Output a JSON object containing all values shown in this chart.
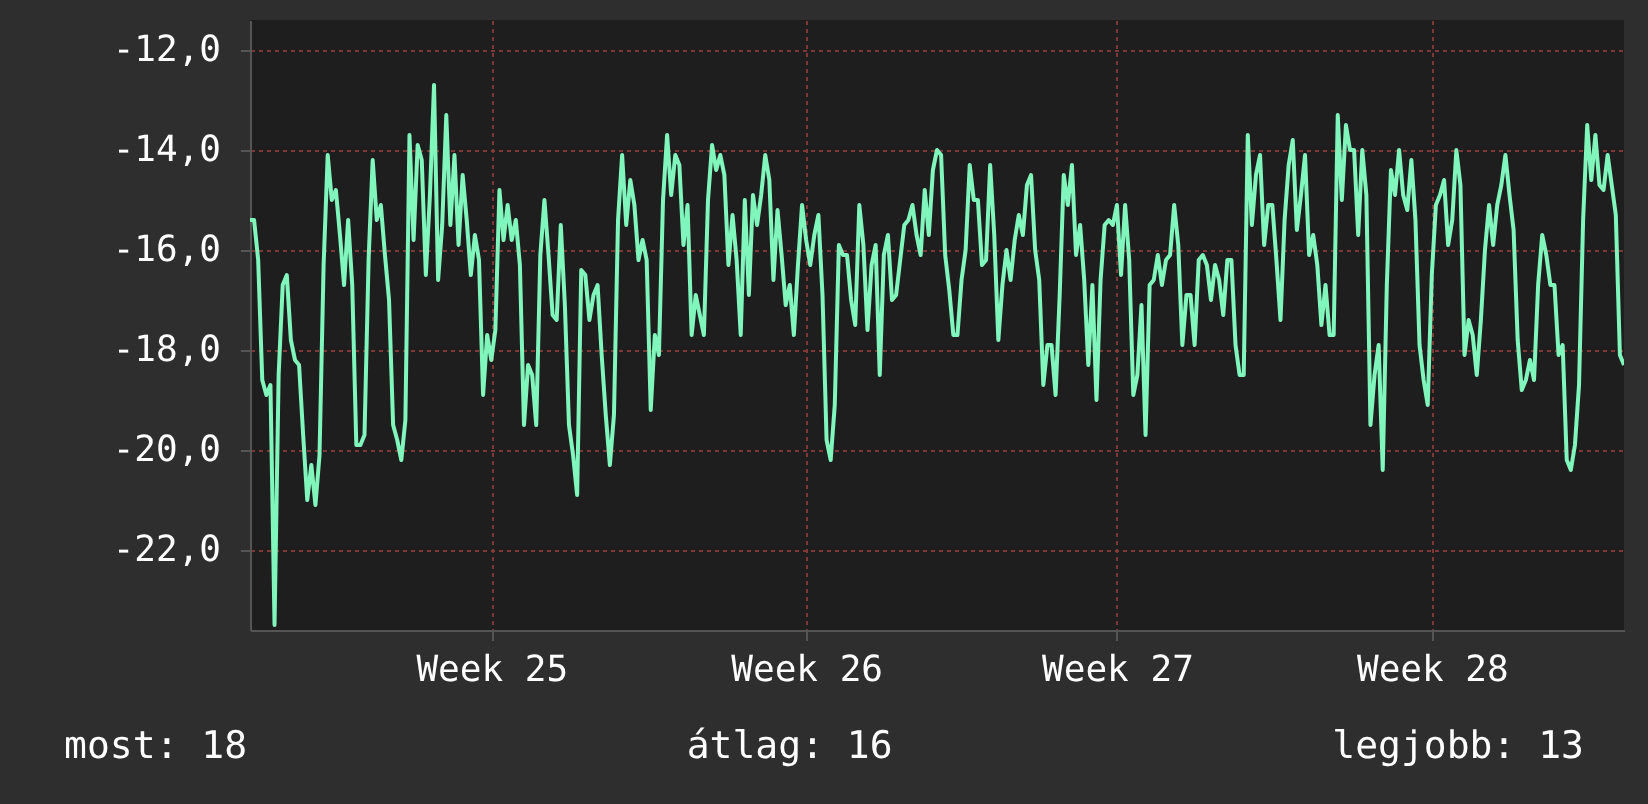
{
  "chart_data": {
    "type": "line",
    "color": "#80f5bc",
    "grid": true,
    "line_style": "solid",
    "categories": [
      null,
      null,
      null,
      null,
      null,
      null,
      null,
      null,
      null,
      null,
      null,
      null,
      null,
      null,
      null,
      null,
      null,
      null,
      null,
      null,
      null,
      null,
      null,
      null,
      null,
      null,
      null,
      null,
      null,
      null,
      null,
      null,
      null,
      null,
      null,
      null,
      null,
      null,
      null,
      null,
      null,
      null,
      null,
      null,
      null,
      null,
      null,
      null,
      null,
      null,
      null,
      null,
      null,
      null,
      null,
      null,
      null,
      null,
      null,
      "Week 25",
      null,
      null,
      null,
      null,
      null,
      null,
      null,
      null,
      null,
      null,
      null,
      null,
      null,
      null,
      null,
      null,
      null,
      null,
      null,
      null,
      null,
      null,
      null,
      null,
      null,
      null,
      null,
      null,
      null,
      null,
      null,
      null,
      null,
      null,
      null,
      null,
      null,
      null,
      null,
      null,
      null,
      null,
      null,
      null,
      null,
      null,
      null,
      null,
      null,
      null,
      null,
      null,
      null,
      null,
      null,
      null,
      null,
      null,
      null,
      null,
      null,
      null,
      null,
      null,
      null,
      null,
      null,
      null,
      null,
      null,
      null,
      null,
      null,
      null,
      null,
      null,
      "Week 26",
      null,
      null,
      null,
      null,
      null,
      null,
      null,
      null,
      null,
      null,
      null,
      null,
      null,
      null,
      null,
      null,
      null,
      null,
      null,
      null,
      null,
      null,
      null,
      null,
      null,
      null,
      null,
      null,
      null,
      null,
      null,
      null,
      null,
      null,
      null,
      null,
      null,
      null,
      null,
      null,
      null,
      null,
      null,
      null,
      null,
      null,
      null,
      null,
      null,
      null,
      null,
      null,
      null,
      null,
      null,
      null,
      null,
      null,
      null,
      null,
      null,
      null,
      null,
      null,
      null,
      null,
      null,
      null,
      null,
      null,
      null,
      null,
      null,
      null,
      null,
      "Week 27",
      null,
      null,
      null,
      null,
      null,
      null,
      null,
      null,
      null,
      null,
      null,
      null,
      null,
      null,
      null,
      null,
      null,
      null,
      null,
      null,
      null,
      null,
      null,
      null,
      null,
      null,
      null,
      null,
      null,
      null,
      null,
      null,
      null,
      null,
      null,
      null,
      null,
      null,
      null,
      null,
      null,
      null,
      null,
      null,
      null,
      null,
      null,
      null,
      null,
      null,
      null,
      null,
      null,
      null,
      null,
      null,
      null,
      null,
      null,
      null,
      null,
      null,
      null,
      null,
      null,
      null,
      null,
      null,
      null,
      null,
      null,
      null,
      null,
      null,
      null,
      null,
      "Week 28",
      null,
      null,
      null,
      null,
      null,
      null,
      null,
      null,
      null,
      null,
      null,
      null,
      null,
      null,
      null,
      null,
      null,
      null,
      null,
      null,
      null,
      null,
      null,
      null,
      null,
      null,
      null,
      null,
      null,
      null,
      null,
      null,
      null,
      null,
      null,
      null,
      null,
      null,
      null,
      null,
      null,
      null,
      null,
      null,
      null,
      null,
      null
    ],
    "ylim": [
      -23.6,
      -11.4
    ],
    "yticks": [
      {
        "value": -12,
        "label": "-12,0"
      },
      {
        "value": -14,
        "label": "-14,0"
      },
      {
        "value": -16,
        "label": "-16,0"
      },
      {
        "value": -18,
        "label": "-18,0"
      },
      {
        "value": -20,
        "label": "-20,0"
      },
      {
        "value": -22,
        "label": "-22,0"
      }
    ],
    "values": [
      -15.4,
      -15.4,
      -16.2,
      -18.6,
      -18.9,
      -18.7,
      -23.5,
      -18.5,
      -16.7,
      -16.5,
      -17.8,
      -18.2,
      -18.3,
      -19.7,
      -21.0,
      -20.3,
      -21.1,
      -20.1,
      -16.3,
      -14.1,
      -15.0,
      -14.8,
      -15.7,
      -16.7,
      -15.4,
      -16.7,
      -19.9,
      -19.9,
      -19.7,
      -16.2,
      -14.2,
      -15.4,
      -15.1,
      -16.1,
      -17.0,
      -19.5,
      -19.8,
      -20.2,
      -19.4,
      -13.7,
      -15.8,
      -13.9,
      -14.2,
      -16.5,
      -14.9,
      -12.7,
      -16.6,
      -15.5,
      -13.3,
      -15.5,
      -14.1,
      -15.9,
      -14.5,
      -15.4,
      -16.5,
      -15.7,
      -16.2,
      -18.9,
      -17.7,
      -18.2,
      -17.6,
      -14.8,
      -15.8,
      -15.1,
      -15.8,
      -15.4,
      -16.3,
      -19.5,
      -18.3,
      -18.5,
      -19.5,
      -16.1,
      -15.0,
      -16.1,
      -17.3,
      -17.4,
      -15.5,
      -17.1,
      -19.5,
      -20.1,
      -20.9,
      -16.4,
      -16.5,
      -17.4,
      -16.9,
      -16.7,
      -18.1,
      -19.3,
      -20.3,
      -19.3,
      -15.4,
      -14.1,
      -15.5,
      -14.6,
      -15.1,
      -16.2,
      -15.8,
      -16.2,
      -19.2,
      -17.7,
      -18.1,
      -15.0,
      -13.7,
      -14.9,
      -14.1,
      -14.3,
      -15.9,
      -15.1,
      -17.7,
      -16.9,
      -17.3,
      -17.7,
      -15.0,
      -13.9,
      -14.4,
      -14.1,
      -14.5,
      -16.3,
      -15.3,
      -16.2,
      -17.7,
      -15.0,
      -16.9,
      -14.9,
      -15.5,
      -14.9,
      -14.1,
      -14.6,
      -16.6,
      -15.2,
      -16.1,
      -17.1,
      -16.7,
      -17.7,
      -16.3,
      -15.1,
      -15.8,
      -16.3,
      -15.7,
      -15.3,
      -16.9,
      -19.8,
      -20.2,
      -19.1,
      -15.9,
      -16.1,
      -16.1,
      -17.0,
      -17.5,
      -15.1,
      -15.9,
      -17.6,
      -16.3,
      -15.9,
      -18.5,
      -16.1,
      -15.7,
      -17.0,
      -16.9,
      -16.2,
      -15.5,
      -15.4,
      -15.1,
      -15.7,
      -16.1,
      -14.8,
      -15.7,
      -14.4,
      -14.0,
      -14.1,
      -16.1,
      -16.8,
      -17.7,
      -17.7,
      -16.6,
      -16.0,
      -14.3,
      -15.0,
      -15.0,
      -16.3,
      -16.2,
      -14.3,
      -15.7,
      -17.8,
      -16.7,
      -16.0,
      -16.6,
      -15.8,
      -15.3,
      -15.7,
      -14.7,
      -14.5,
      -16.0,
      -16.6,
      -18.7,
      -17.9,
      -17.9,
      -18.9,
      -16.9,
      -14.5,
      -15.1,
      -14.3,
      -16.1,
      -15.5,
      -16.6,
      -18.3,
      -16.7,
      -19.0,
      -16.6,
      -15.5,
      -15.4,
      -15.5,
      -15.1,
      -16.5,
      -15.1,
      -16.2,
      -18.9,
      -18.5,
      -17.1,
      -19.7,
      -16.7,
      -16.6,
      -16.1,
      -16.7,
      -16.2,
      -16.1,
      -15.1,
      -15.9,
      -17.9,
      -16.9,
      -16.9,
      -17.9,
      -16.2,
      -16.1,
      -16.3,
      -17.0,
      -16.3,
      -16.6,
      -17.3,
      -16.2,
      -16.2,
      -17.9,
      -18.5,
      -18.5,
      -13.7,
      -15.5,
      -14.5,
      -14.1,
      -15.9,
      -15.1,
      -15.1,
      -16.2,
      -17.4,
      -15.4,
      -14.3,
      -13.8,
      -15.6,
      -14.9,
      -14.1,
      -16.1,
      -15.7,
      -16.3,
      -17.5,
      -16.7,
      -17.7,
      -17.7,
      -13.3,
      -15.0,
      -13.5,
      -14.0,
      -14.0,
      -15.7,
      -14.0,
      -14.9,
      -19.5,
      -18.5,
      -17.9,
      -20.4,
      -16.7,
      -14.4,
      -14.9,
      -14.0,
      -14.9,
      -15.2,
      -14.2,
      -15.4,
      -17.9,
      -18.6,
      -19.1,
      -16.5,
      -15.1,
      -14.9,
      -14.6,
      -15.9,
      -15.4,
      -14.0,
      -14.7,
      -18.1,
      -17.4,
      -17.7,
      -18.5,
      -17.4,
      -16.0,
      -15.1,
      -15.9,
      -15.1,
      -14.7,
      -14.1,
      -14.9,
      -15.6,
      -17.8,
      -18.8,
      -18.6,
      -18.2,
      -18.6,
      -16.7,
      -15.7,
      -16.1,
      -16.7,
      -16.7,
      -18.1,
      -17.9,
      -20.2,
      -20.4,
      -19.9,
      -18.7,
      -15.4,
      -13.5,
      -14.6,
      -13.7,
      -14.7,
      -14.8,
      -14.1,
      -14.7,
      -15.3,
      -18.1,
      -18.3
    ],
    "annotations": [
      "most: 18",
      "átlag: 16",
      "legjobb: 13"
    ]
  }
}
